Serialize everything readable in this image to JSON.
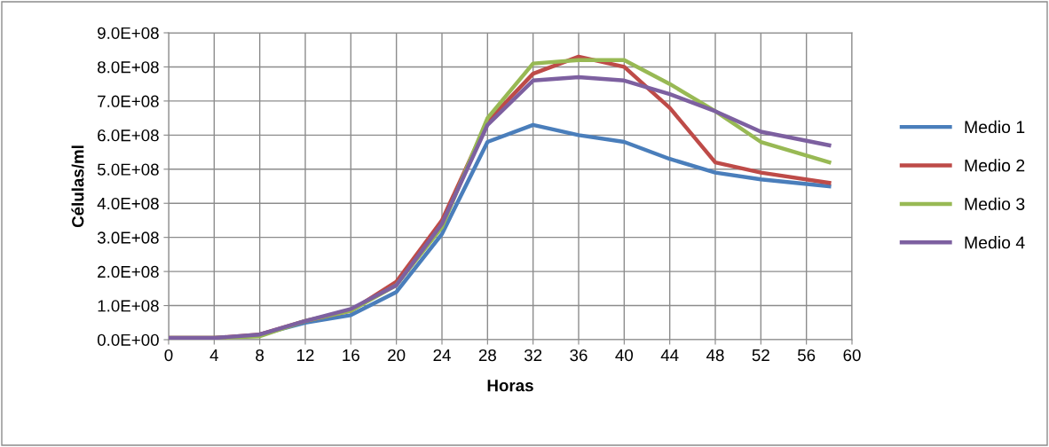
{
  "chart_data": {
    "type": "line",
    "xlabel": "Horas",
    "ylabel": "Células/ml",
    "x": [
      0,
      4,
      8,
      12,
      16,
      20,
      24,
      28,
      32,
      36,
      40,
      44,
      48,
      52,
      58
    ],
    "series": [
      {
        "name": "Medio 1",
        "color": "#4a7ebb",
        "values": [
          null,
          null,
          15000000.0,
          50000000.0,
          72000000.0,
          140000000.0,
          310000000.0,
          580000000.0,
          630000000.0,
          600000000.0,
          580000000.0,
          530000000.0,
          490000000.0,
          470000000.0,
          450000000.0
        ]
      },
      {
        "name": "Medio 2",
        "color": "#be4b48",
        "values": [
          5000000.0,
          5000000.0,
          15000000.0,
          55000000.0,
          85000000.0,
          170000000.0,
          350000000.0,
          640000000.0,
          780000000.0,
          830000000.0,
          800000000.0,
          680000000.0,
          520000000.0,
          490000000.0,
          460000000.0
        ]
      },
      {
        "name": "Medio 3",
        "color": "#98b954",
        "values": [
          5000000.0,
          5000000.0,
          10000000.0,
          55000000.0,
          85000000.0,
          160000000.0,
          330000000.0,
          650000000.0,
          810000000.0,
          820000000.0,
          820000000.0,
          750000000.0,
          670000000.0,
          580000000.0,
          520000000.0
        ]
      },
      {
        "name": "Medio 4",
        "color": "#7d60a0",
        "values": [
          5000000.0,
          5000000.0,
          15000000.0,
          55000000.0,
          90000000.0,
          160000000.0,
          340000000.0,
          630000000.0,
          760000000.0,
          770000000.0,
          760000000.0,
          720000000.0,
          670000000.0,
          610000000.0,
          570000000.0
        ]
      }
    ],
    "xlim": [
      0,
      60
    ],
    "xticks": [
      0,
      4,
      8,
      12,
      16,
      20,
      24,
      28,
      32,
      36,
      40,
      44,
      48,
      52,
      56,
      60
    ],
    "ylim": [
      0,
      900000000
    ],
    "yticks": [
      {
        "value": 0,
        "label": "0.0E+00"
      },
      {
        "value": 100000000,
        "label": "1.0E+08"
      },
      {
        "value": 200000000,
        "label": "2.0E+08"
      },
      {
        "value": 300000000,
        "label": "3.0E+08"
      },
      {
        "value": 400000000,
        "label": "4.0E+08"
      },
      {
        "value": 500000000,
        "label": "5.0E+08"
      },
      {
        "value": 600000000,
        "label": "6.0E+08"
      },
      {
        "value": 700000000,
        "label": "7.0E+08"
      },
      {
        "value": 800000000,
        "label": "8.0E+08"
      },
      {
        "value": 900000000,
        "label": "9.0E+08"
      }
    ],
    "grid": true,
    "legend": "right",
    "marker": "none",
    "line_style": "solid"
  }
}
